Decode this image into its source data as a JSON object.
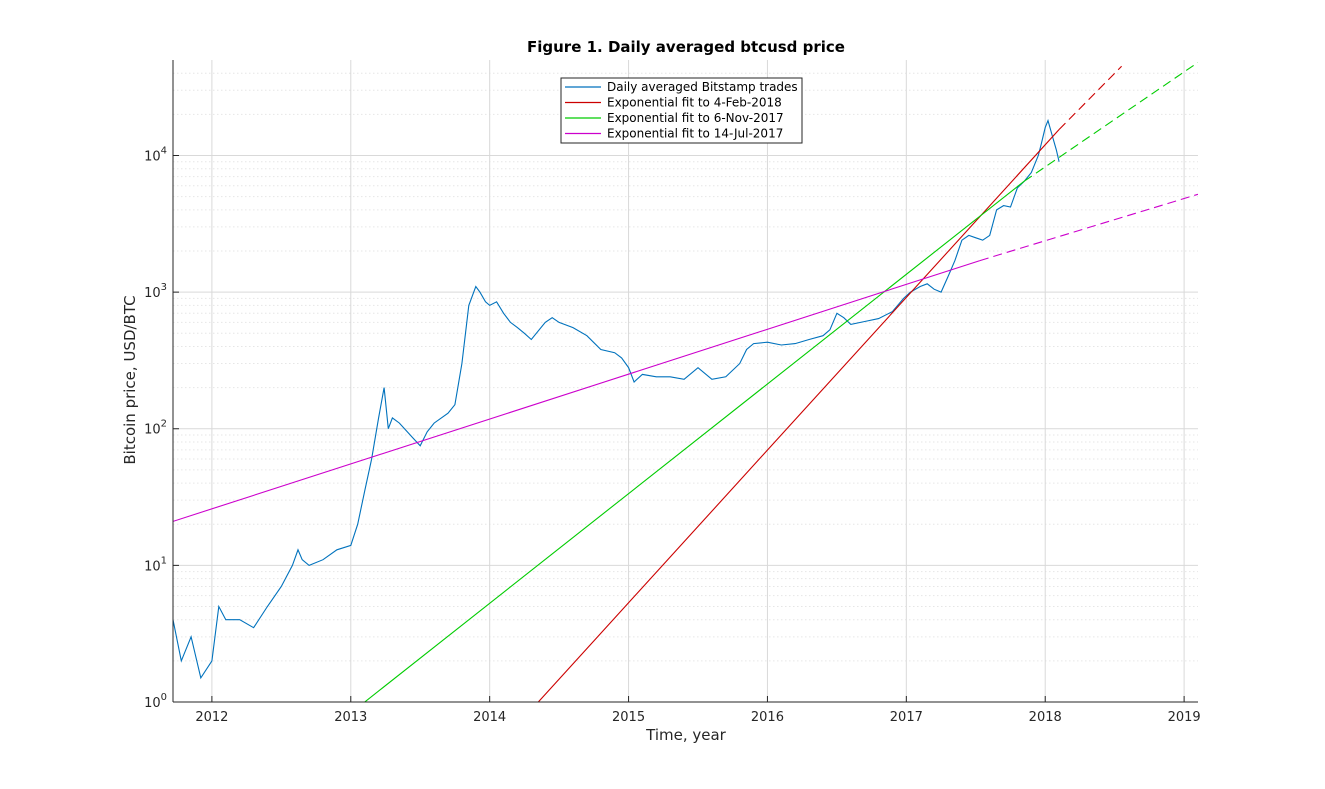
{
  "chart_data": {
    "type": "line",
    "title": "Figure 1. Daily averaged btcusd price",
    "xlabel": "Time, year",
    "ylabel": "Bitcoin price, USD/BTC",
    "xlim": [
      2011.72,
      2019.1
    ],
    "ylim": [
      1,
      50000
    ],
    "yscale": "log",
    "grid": true,
    "minor_grid": true,
    "legend_position": "top-center",
    "x_ticks": [
      2012,
      2013,
      2014,
      2015,
      2016,
      2017,
      2018,
      2019
    ],
    "x_tick_labels": [
      "2012",
      "2013",
      "2014",
      "2015",
      "2016",
      "2017",
      "2018",
      "2019"
    ],
    "y_ticks": [
      1,
      10,
      100,
      1000,
      10000
    ],
    "y_tick_labels": [
      {
        "base": "10",
        "exp": "0"
      },
      {
        "base": "10",
        "exp": "1"
      },
      {
        "base": "10",
        "exp": "2"
      },
      {
        "base": "10",
        "exp": "3"
      },
      {
        "base": "10",
        "exp": "4"
      }
    ],
    "series": [
      {
        "name": "Daily averaged Bitstamp trades",
        "color": "#0072bd",
        "style": "solid",
        "x": [
          2011.72,
          2011.78,
          2011.85,
          2011.92,
          2012.0,
          2012.05,
          2012.1,
          2012.2,
          2012.3,
          2012.4,
          2012.5,
          2012.58,
          2012.62,
          2012.65,
          2012.7,
          2012.8,
          2012.9,
          2013.0,
          2013.05,
          2013.1,
          2013.15,
          2013.2,
          2013.24,
          2013.27,
          2013.3,
          2013.35,
          2013.45,
          2013.5,
          2013.55,
          2013.6,
          2013.7,
          2013.75,
          2013.8,
          2013.85,
          2013.9,
          2013.93,
          2013.97,
          2014.0,
          2014.05,
          2014.1,
          2014.15,
          2014.2,
          2014.25,
          2014.3,
          2014.4,
          2014.45,
          2014.5,
          2014.6,
          2014.7,
          2014.8,
          2014.9,
          2014.95,
          2015.0,
          2015.04,
          2015.1,
          2015.2,
          2015.3,
          2015.4,
          2015.5,
          2015.6,
          2015.7,
          2015.8,
          2015.85,
          2015.9,
          2016.0,
          2016.1,
          2016.2,
          2016.3,
          2016.4,
          2016.45,
          2016.5,
          2016.55,
          2016.6,
          2016.7,
          2016.8,
          2016.9,
          2016.98,
          2017.03,
          2017.1,
          2017.15,
          2017.2,
          2017.25,
          2017.3,
          2017.35,
          2017.4,
          2017.45,
          2017.5,
          2017.55,
          2017.6,
          2017.65,
          2017.7,
          2017.75,
          2017.8,
          2017.85,
          2017.9,
          2017.95,
          2017.97,
          2018.0,
          2018.02,
          2018.05,
          2018.08,
          2018.1
        ],
        "y": [
          4,
          2,
          3,
          1.5,
          2,
          5,
          4,
          4,
          3.5,
          5,
          7,
          10,
          13,
          11,
          10,
          11,
          13,
          14,
          20,
          35,
          60,
          120,
          200,
          100,
          120,
          110,
          85,
          75,
          95,
          110,
          130,
          150,
          300,
          800,
          1100,
          1000,
          850,
          800,
          850,
          700,
          600,
          550,
          500,
          450,
          600,
          650,
          600,
          550,
          480,
          380,
          360,
          330,
          280,
          220,
          250,
          240,
          240,
          230,
          280,
          230,
          240,
          300,
          380,
          420,
          430,
          410,
          420,
          450,
          480,
          530,
          700,
          650,
          580,
          610,
          640,
          720,
          900,
          1000,
          1100,
          1150,
          1050,
          1000,
          1300,
          1700,
          2400,
          2600,
          2500,
          2400,
          2600,
          4000,
          4300,
          4200,
          5800,
          6500,
          7500,
          10000,
          12000,
          16000,
          18000,
          14000,
          11000,
          9000
        ]
      },
      {
        "name": "Exponential fit to 4-Feb-2018",
        "color": "#cc0000",
        "style": "solid",
        "x": [
          2014.35,
          2018.1
        ],
        "y": [
          1,
          15500
        ]
      },
      {
        "name": "Exponential fit to 4-Feb-2018",
        "color": "#cc0000",
        "style": "dashed",
        "legend": false,
        "x": [
          2018.1,
          2018.55
        ],
        "y": [
          15500,
          45000
        ]
      },
      {
        "name": "Exponential fit to 6-Nov-2017",
        "color": "#00cc00",
        "style": "solid",
        "x": [
          2013.1,
          2017.85
        ],
        "y": [
          1,
          6500
        ]
      },
      {
        "name": "Exponential fit to 6-Nov-2017",
        "color": "#00cc00",
        "style": "dashed",
        "legend": false,
        "x": [
          2017.85,
          2019.1
        ],
        "y": [
          6500,
          48000
        ]
      },
      {
        "name": "Exponential fit to 14-Jul-2017",
        "color": "#cc00cc",
        "style": "solid",
        "x": [
          2011.72,
          2017.53
        ],
        "y": [
          21,
          1700
        ]
      },
      {
        "name": "Exponential fit to 14-Jul-2017",
        "color": "#cc00cc",
        "style": "dashed",
        "legend": false,
        "x": [
          2017.53,
          2019.1
        ],
        "y": [
          1700,
          5200
        ]
      }
    ]
  }
}
